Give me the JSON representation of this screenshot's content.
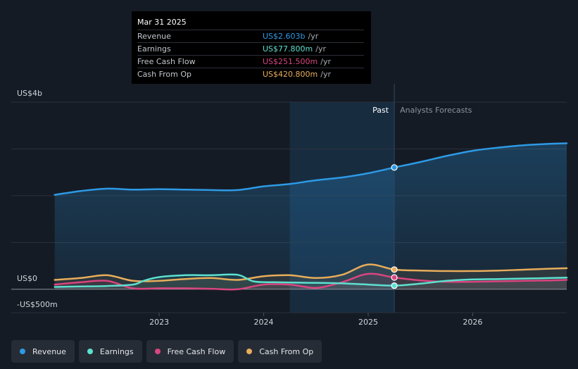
{
  "colors": {
    "revenue": "#2d9ae6",
    "earnings": "#5ce0cf",
    "free_cash_flow": "#d9457f",
    "cash_from_op": "#e8ad5b"
  },
  "tooltip": {
    "date": "Mar 31 2025",
    "rows": [
      {
        "label": "Revenue",
        "value": "US$2.603b",
        "unit": "/yr"
      },
      {
        "label": "Earnings",
        "value": "US$77.800m",
        "unit": "/yr"
      },
      {
        "label": "Free Cash Flow",
        "value": "US$251.500m",
        "unit": "/yr"
      },
      {
        "label": "Cash From Op",
        "value": "US$420.800m",
        "unit": "/yr"
      }
    ]
  },
  "legend": [
    {
      "label": "Revenue",
      "key": "revenue"
    },
    {
      "label": "Earnings",
      "key": "earnings"
    },
    {
      "label": "Free Cash Flow",
      "key": "free_cash_flow"
    },
    {
      "label": "Cash From Op",
      "key": "cash_from_op"
    }
  ],
  "chart_data": {
    "type": "line",
    "title": "",
    "ylabel": "",
    "y_unit": "US$ millions",
    "ylim": [
      -500,
      4000
    ],
    "x_range": [
      2021.8,
      2026.9
    ],
    "y_tick_labels": [
      {
        "value": 4000,
        "label": "US$4b"
      },
      {
        "value": 0,
        "label": "US$0"
      },
      {
        "value": -500,
        "label": "-US$500m"
      }
    ],
    "x_ticks": [
      {
        "value": 2023.0,
        "label": "2023"
      },
      {
        "value": 2024.0,
        "label": "2024"
      },
      {
        "value": 2025.0,
        "label": "2025"
      },
      {
        "value": 2026.0,
        "label": "2026"
      }
    ],
    "past_label": "Past",
    "forecast_label": "Analysts Forecasts",
    "past_region_start": 2024.25,
    "divider_x": 2025.25,
    "series": [
      {
        "name": "Revenue",
        "key": "revenue",
        "x": [
          2022.0,
          2022.25,
          2022.5,
          2022.75,
          2023.0,
          2023.25,
          2023.5,
          2023.75,
          2024.0,
          2024.25,
          2024.5,
          2024.75,
          2025.0,
          2025.25,
          2025.5,
          2025.75,
          2026.0,
          2026.25,
          2026.5,
          2026.75,
          2026.9
        ],
        "values": [
          2020,
          2100,
          2150,
          2130,
          2140,
          2130,
          2120,
          2120,
          2200,
          2250,
          2330,
          2390,
          2480,
          2603,
          2720,
          2850,
          2960,
          3030,
          3080,
          3110,
          3120
        ]
      },
      {
        "name": "Earnings",
        "key": "earnings",
        "x": [
          2022.0,
          2022.25,
          2022.5,
          2022.75,
          2022.85,
          2023.0,
          2023.25,
          2023.5,
          2023.75,
          2023.9,
          2024.1,
          2024.4,
          2024.7,
          2025.0,
          2025.25,
          2025.5,
          2025.75,
          2026.0,
          2026.25,
          2026.5,
          2026.75,
          2026.9
        ],
        "values": [
          50,
          60,
          70,
          100,
          180,
          260,
          300,
          300,
          310,
          170,
          150,
          140,
          130,
          100,
          78,
          120,
          180,
          210,
          220,
          230,
          240,
          250
        ]
      },
      {
        "name": "Free Cash Flow",
        "key": "free_cash_flow",
        "x": [
          2022.0,
          2022.25,
          2022.5,
          2022.75,
          2023.0,
          2023.25,
          2023.5,
          2023.75,
          2024.0,
          2024.25,
          2024.5,
          2024.75,
          2025.0,
          2025.25,
          2025.5,
          2025.75,
          2026.0,
          2026.25,
          2026.5,
          2026.75,
          2026.9
        ],
        "values": [
          100,
          150,
          180,
          20,
          20,
          20,
          10,
          0,
          100,
          100,
          30,
          150,
          330,
          252,
          190,
          160,
          160,
          170,
          180,
          190,
          200
        ]
      },
      {
        "name": "Cash From Op",
        "key": "cash_from_op",
        "x": [
          2022.0,
          2022.25,
          2022.5,
          2022.75,
          2023.0,
          2023.25,
          2023.5,
          2023.75,
          2024.0,
          2024.25,
          2024.5,
          2024.75,
          2025.0,
          2025.25,
          2025.5,
          2025.75,
          2026.0,
          2026.25,
          2026.5,
          2026.75,
          2026.9
        ],
        "values": [
          200,
          240,
          300,
          180,
          180,
          220,
          240,
          200,
          280,
          300,
          240,
          310,
          530,
          421,
          400,
          390,
          390,
          400,
          420,
          440,
          450
        ]
      }
    ],
    "markers_at_x": 2025.25
  }
}
